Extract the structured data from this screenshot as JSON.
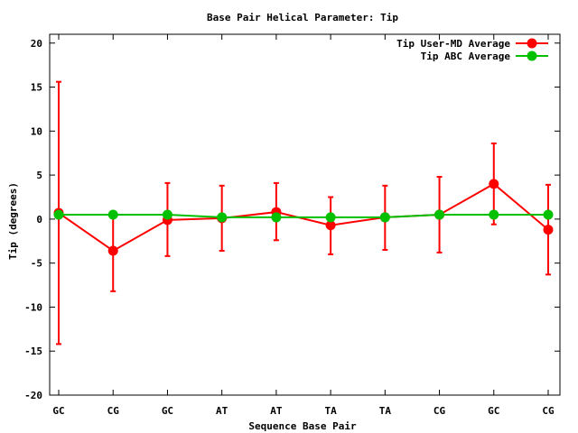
{
  "chart_data": {
    "type": "line",
    "title": "Base Pair Helical Parameter: Tip",
    "xlabel": "Sequence Base Pair",
    "ylabel": "Tip (degrees)",
    "categories": [
      "GC",
      "CG",
      "GC",
      "AT",
      "AT",
      "TA",
      "TA",
      "CG",
      "GC",
      "CG"
    ],
    "ylim": [
      -20,
      21
    ],
    "yticks": [
      -20,
      -15,
      -10,
      -5,
      0,
      5,
      10,
      15,
      20
    ],
    "ytick_labels": [
      "-20",
      "-15",
      "-10",
      "-5",
      "0",
      "5",
      "10",
      "15",
      "20"
    ],
    "grid": false,
    "legend_position": "top-right",
    "series": [
      {
        "name": "Tip User-MD Average",
        "color": "#ff0000",
        "values": [
          0.7,
          -3.6,
          -0.1,
          0.1,
          0.8,
          -0.7,
          0.2,
          0.5,
          4.0,
          -1.2
        ],
        "error_low": [
          -14.2,
          -8.2,
          -4.2,
          -3.6,
          -2.4,
          -4.0,
          -3.5,
          -3.8,
          -0.6,
          -6.3
        ],
        "error_high": [
          15.6,
          0.5,
          4.1,
          3.8,
          4.1,
          2.5,
          3.8,
          4.8,
          8.6,
          3.9
        ]
      },
      {
        "name": "Tip ABC Average",
        "color": "#00c000",
        "values": [
          0.5,
          0.5,
          0.5,
          0.2,
          0.2,
          0.2,
          0.2,
          0.5,
          0.5,
          0.5
        ]
      }
    ]
  }
}
